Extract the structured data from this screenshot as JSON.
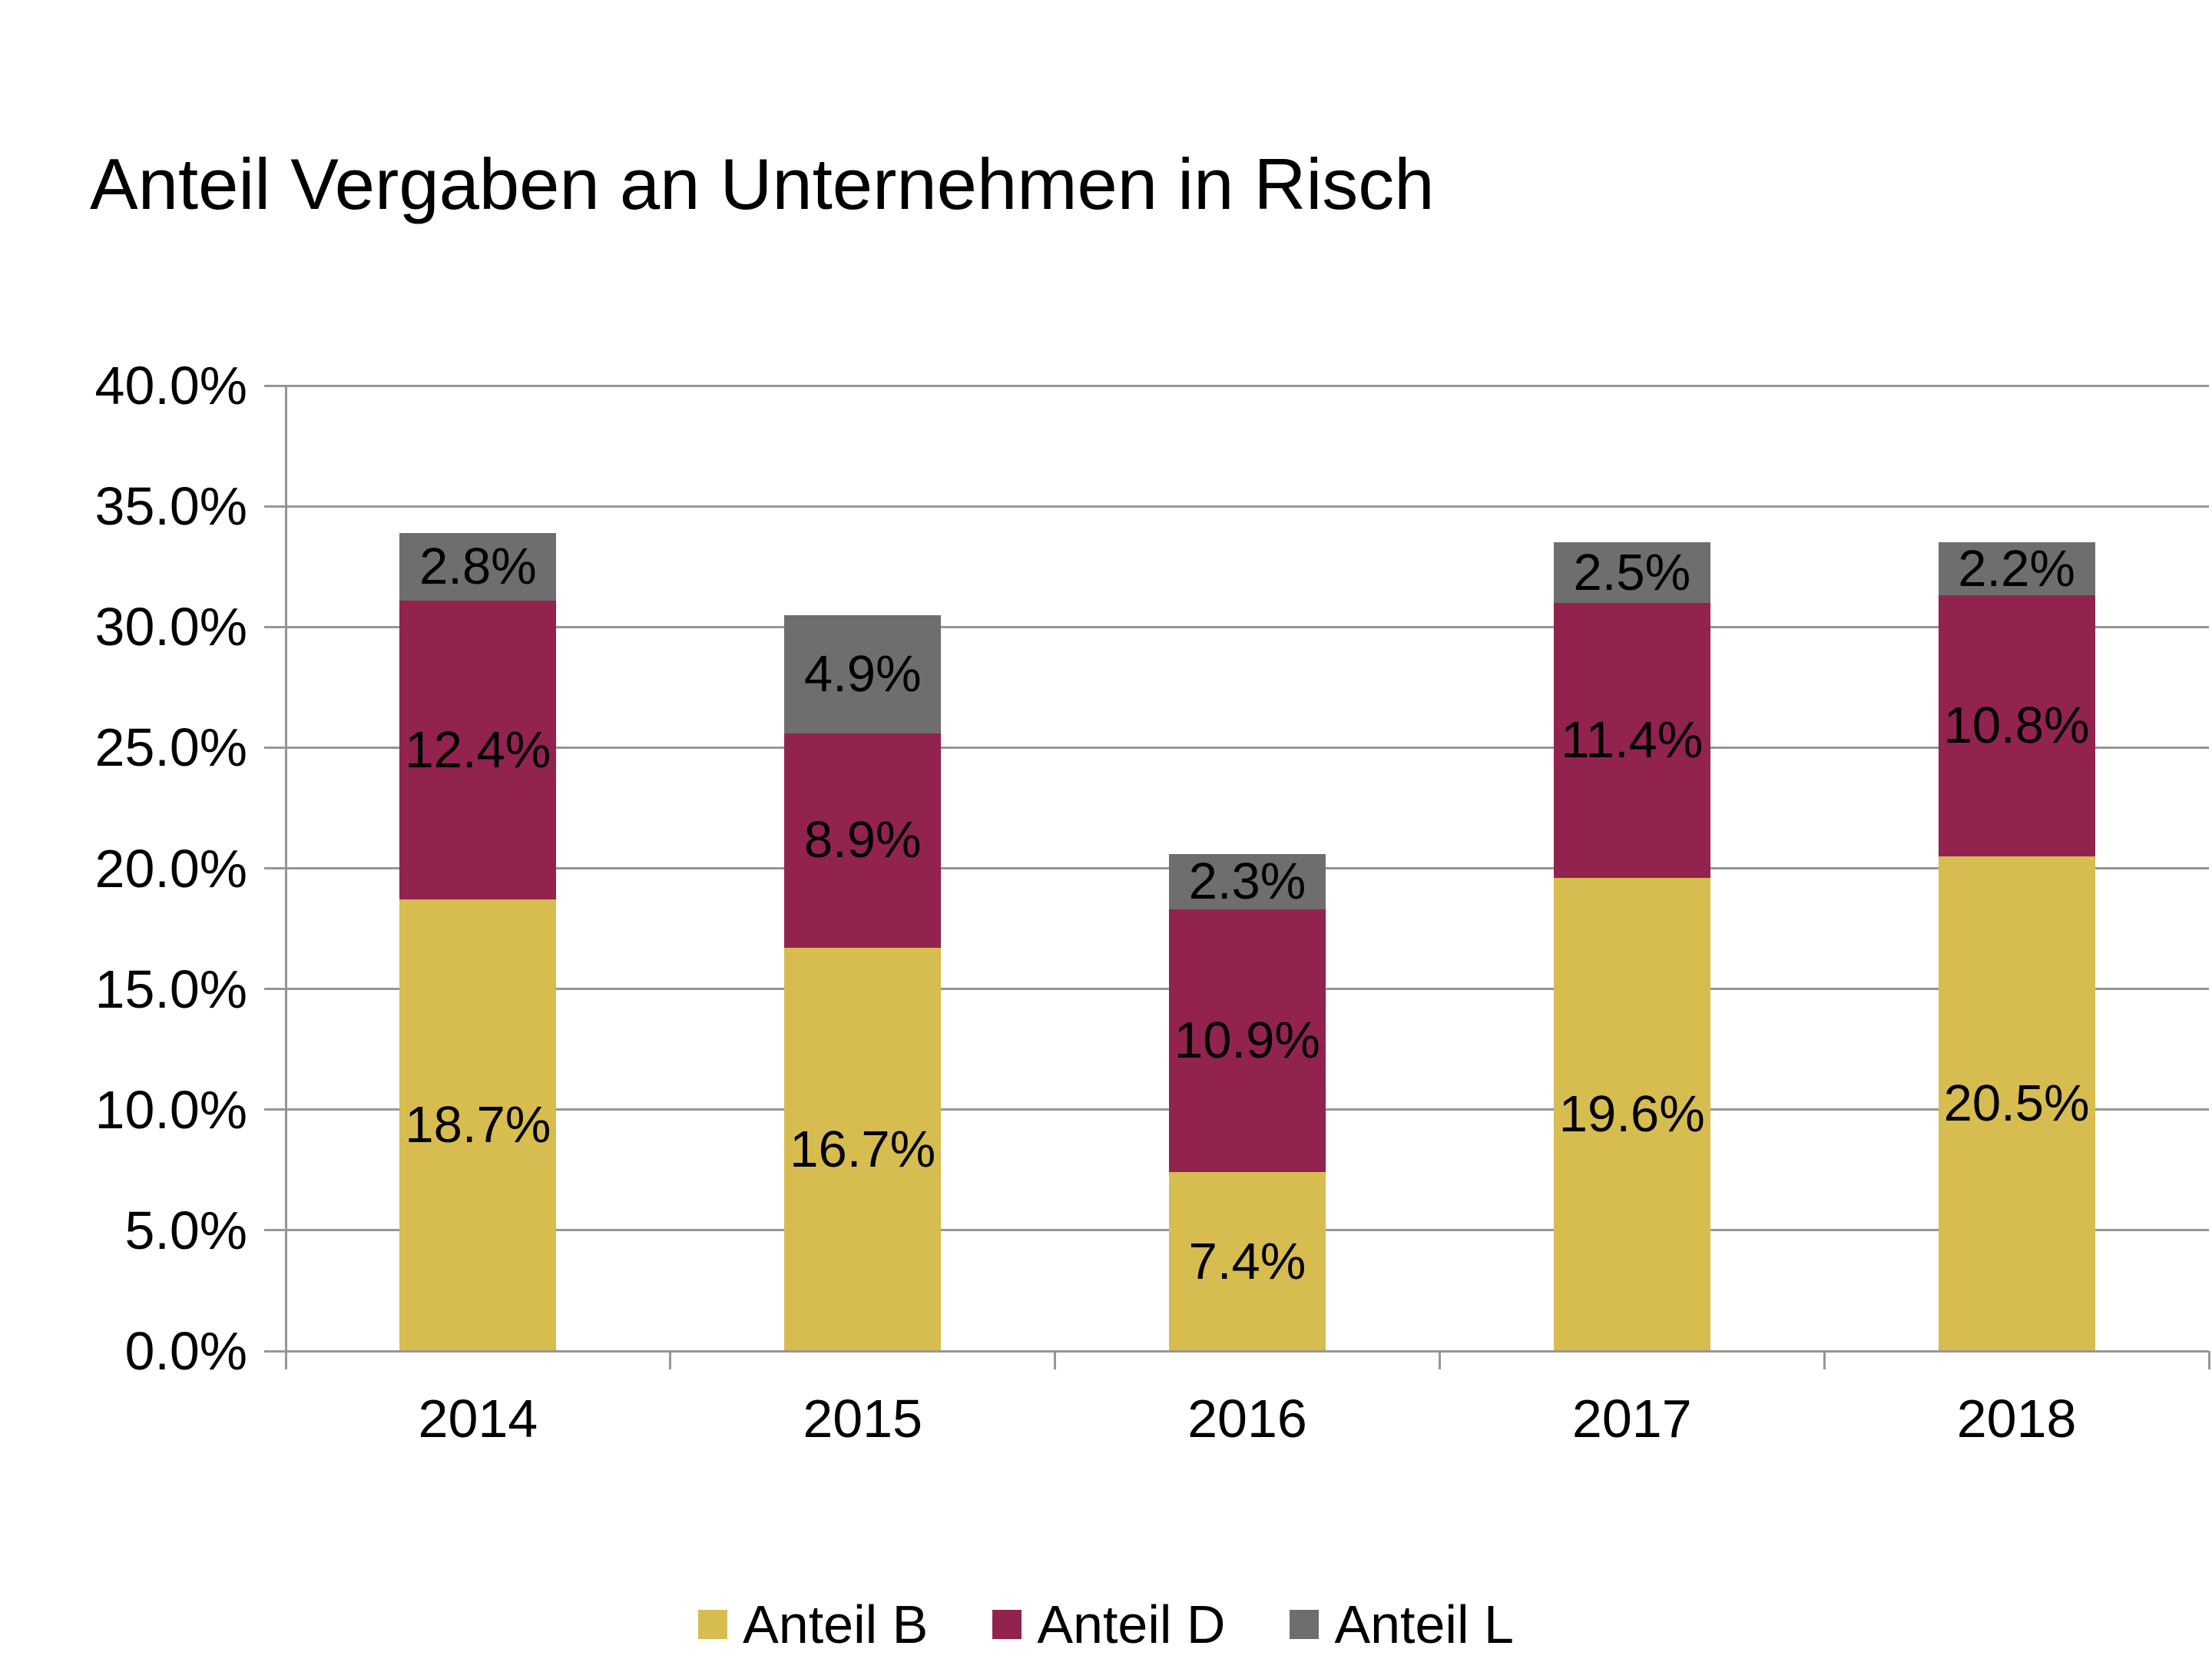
{
  "title": "Anteil Vergaben an Unternehmen in Risch",
  "chart_data": {
    "type": "bar",
    "stacked": true,
    "title": "Anteil Vergaben an Unternehmen in Risch",
    "xlabel": "",
    "ylabel": "",
    "categories": [
      "2014",
      "2015",
      "2016",
      "2017",
      "2018"
    ],
    "series": [
      {
        "name": "Anteil B",
        "color": "#D7BC4F",
        "values": [
          18.7,
          16.7,
          7.4,
          19.6,
          20.5
        ],
        "labels": [
          "18.7%",
          "16.7%",
          "7.4%",
          "19.6%",
          "20.5%"
        ]
      },
      {
        "name": "Anteil D",
        "color": "#91234E",
        "values": [
          12.4,
          8.9,
          10.9,
          11.4,
          10.8
        ],
        "labels": [
          "12.4%",
          "8.9%",
          "10.9%",
          "11.4%",
          "10.8%"
        ]
      },
      {
        "name": "Anteil L",
        "color": "#6E6E6E",
        "values": [
          2.8,
          4.9,
          2.3,
          2.5,
          2.2
        ],
        "labels": [
          "2.8%",
          "4.9%",
          "2.3%",
          "2.5%",
          "2.2%"
        ]
      }
    ],
    "ylim": [
      0,
      40
    ],
    "ytick_step": 5,
    "ytick_labels": [
      "0.0%",
      "5.0%",
      "10.0%",
      "15.0%",
      "20.0%",
      "25.0%",
      "30.0%",
      "35.0%",
      "40.0%"
    ],
    "grid": true,
    "gridline_color": "#969696",
    "axis_color": "#969696",
    "data_label_color": "#000000",
    "legend_position": "bottom"
  }
}
